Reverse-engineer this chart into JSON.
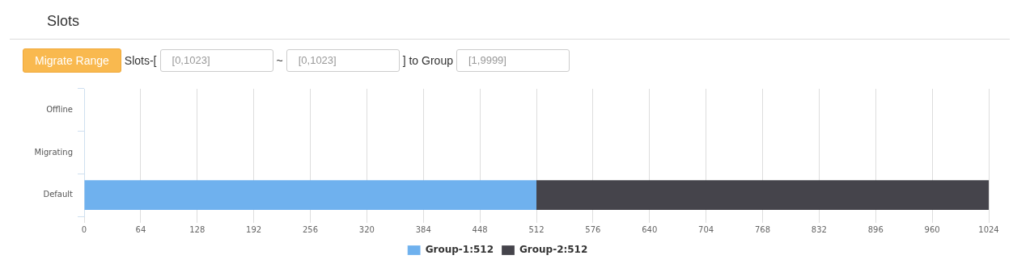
{
  "chart_data": {
    "type": "bar",
    "title": "Slots",
    "annotations": [
      "Migrate Range",
      "Slots-[",
      "[0,1023]",
      "~",
      "[0,1023]",
      "] to Group",
      "[1,9999]"
    ],
    "orientation": "horizontal",
    "stacked": true,
    "categories": [
      "Offline",
      "Migrating",
      "Default"
    ],
    "series": [
      {
        "name": "Group-1:512",
        "color": "#6fb1ee",
        "values": [
          null,
          null,
          512
        ]
      },
      {
        "name": "Group-2:512",
        "color": "#45444b",
        "values": [
          null,
          null,
          512
        ]
      }
    ],
    "xlim": [
      0,
      1024
    ],
    "xticks": [
      0,
      64,
      128,
      192,
      256,
      320,
      384,
      448,
      512,
      576,
      640,
      704,
      768,
      832,
      896,
      960,
      1024
    ],
    "grid": "x",
    "legend": "bottom"
  }
}
